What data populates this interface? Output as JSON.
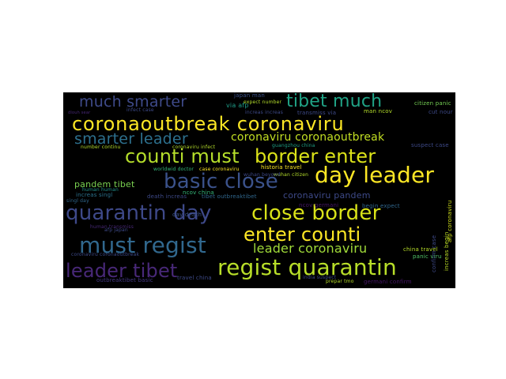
{
  "wordcloud": {
    "words": [
      {
        "text": "coronaoutbreak coronaviru",
        "color": "#fde725"
      },
      {
        "text": "counti must",
        "color": "#b5de2b"
      },
      {
        "text": "border enter",
        "color": "#dce319"
      },
      {
        "text": "basic close",
        "color": "#3b528b"
      },
      {
        "text": "day leader",
        "color": "#fde725"
      },
      {
        "text": "quarantin day",
        "color": "#3e4989"
      },
      {
        "text": "close border",
        "color": "#d8e219"
      },
      {
        "text": "enter counti",
        "color": "#fde725"
      },
      {
        "text": "must regist",
        "color": "#31688e"
      },
      {
        "text": "regist quarantin",
        "color": "#b8de29"
      },
      {
        "text": "leader tibet",
        "color": "#482878"
      },
      {
        "text": "much smarter",
        "color": "#3e4a89"
      },
      {
        "text": "tibet much",
        "color": "#20a386"
      },
      {
        "text": "smarter leader",
        "color": "#2d708e"
      },
      {
        "text": "coronaviru coronaoutbreak",
        "color": "#c2df23"
      },
      {
        "text": "leader coronaviru",
        "color": "#a0da39"
      },
      {
        "text": "coronaviru pandem",
        "color": "#3e4a89"
      },
      {
        "text": "pandem tibet",
        "color": "#7ad151"
      },
      {
        "text": "historia travel",
        "color": "#fde725"
      },
      {
        "text": "via afp",
        "color": "#1f9e89"
      },
      {
        "text": "japan man",
        "color": "#3b528b"
      },
      {
        "text": "expect number",
        "color": "#b5de2b"
      },
      {
        "text": "citizen panic",
        "color": "#75d054"
      },
      {
        "text": "increas begin",
        "color": "#bddf26"
      },
      {
        "text": "ncov china",
        "color": "#35b779"
      },
      {
        "text": "day death",
        "color": "#3b528b"
      },
      {
        "text": "death increas",
        "color": "#3e4a89"
      },
      {
        "text": "tibet outbreaktibet",
        "color": "#31688e"
      },
      {
        "text": "outbreaktibet basic",
        "color": "#443983"
      },
      {
        "text": "travel china",
        "color": "#3e4a89"
      },
      {
        "text": "china travel",
        "color": "#b8de29"
      },
      {
        "text": "germani confirm",
        "color": "#48186a"
      },
      {
        "text": "india suspect",
        "color": "#3e4a89"
      },
      {
        "text": "prepar tmo",
        "color": "#b8de29"
      },
      {
        "text": "panic viru",
        "color": "#52c569"
      },
      {
        "text": "afp coronaviru",
        "color": "#d2e21b"
      },
      {
        "text": "suspect case",
        "color": "#3e4a89"
      },
      {
        "text": "ncov germani",
        "color": "#48186a"
      },
      {
        "text": "begin expect",
        "color": "#31688e"
      },
      {
        "text": "number continu",
        "color": "#b5de2b"
      },
      {
        "text": "coronaviru infect",
        "color": "#b5de2b"
      },
      {
        "text": "case coronaviru",
        "color": "#fde725"
      },
      {
        "text": "worldwid doctor",
        "color": "#35b779"
      },
      {
        "text": "increas singl",
        "color": "#2c728e"
      },
      {
        "text": "singl day",
        "color": "#31688e"
      },
      {
        "text": "afp japan",
        "color": "#3e4a89"
      },
      {
        "text": "human human",
        "color": "#21918c"
      },
      {
        "text": "human transmiss",
        "color": "#482878"
      },
      {
        "text": "transmiss via",
        "color": "#3e4a89"
      },
      {
        "text": "coronaviru coronaoutbreak",
        "color": "#3e4a89"
      },
      {
        "text": "guangzhou china",
        "color": "#1fa187"
      },
      {
        "text": "wuhan citizen",
        "color": "#b5de2b"
      },
      {
        "text": "wuhan beyond",
        "color": "#3e4a89"
      },
      {
        "text": "cut nour",
        "color": "#3e4a89"
      },
      {
        "text": "man ncov",
        "color": "#b5de2b"
      },
      {
        "text": "increas increas",
        "color": "#3e4a89"
      },
      {
        "text": "confirm case",
        "color": "#3e4a89"
      },
      {
        "text": "dlouh sear",
        "color": "#482878"
      },
      {
        "text": "infect case",
        "color": "#3e4a89"
      }
    ]
  }
}
